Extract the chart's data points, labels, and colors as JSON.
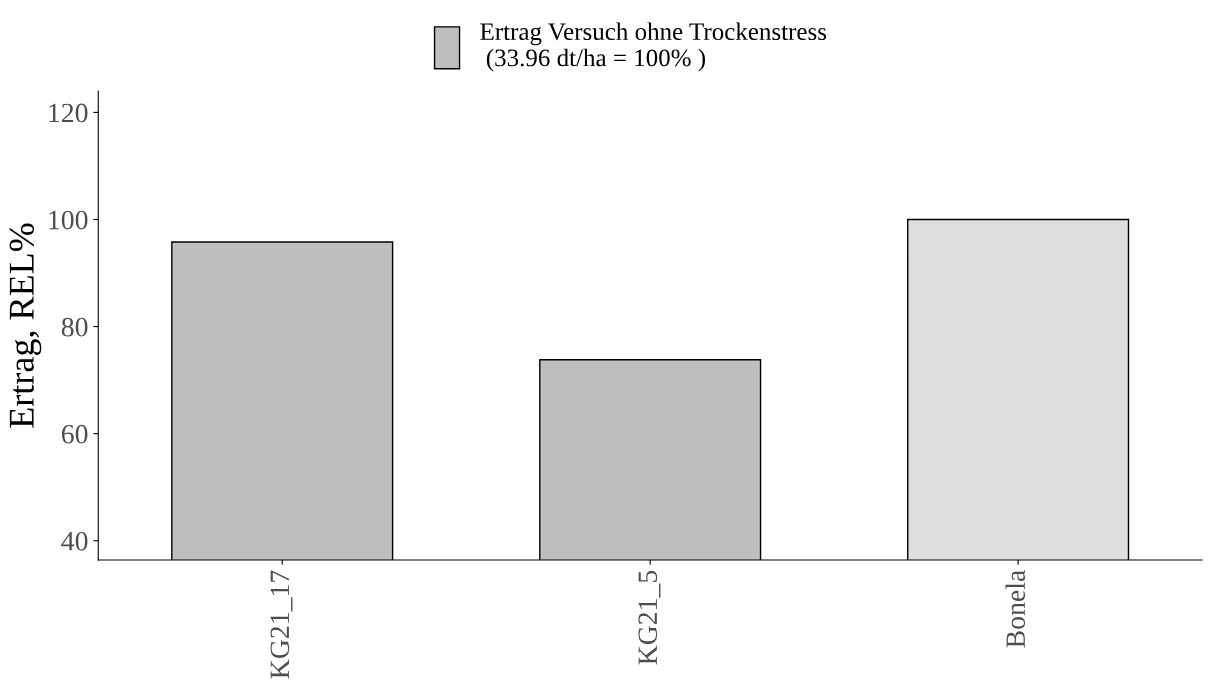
{
  "chart_data": {
    "type": "bar",
    "ylabel": "Ertrag, REL%",
    "categories": [
      "KG21_17",
      "KG21_5",
      "Bonela"
    ],
    "series": [
      {
        "name": "Ertrag Versuch ohne Trockenstress\n (33.96 dt/ha = 100% )",
        "colors": [
          "#bebebe",
          "#bebebe",
          "#dedede"
        ],
        "values": [
          95.8,
          73.8,
          100
        ]
      }
    ],
    "ylim": [
      36.4,
      124
    ],
    "yticks": [
      40,
      60,
      80,
      100,
      120
    ],
    "grid": false,
    "legend": "top"
  }
}
